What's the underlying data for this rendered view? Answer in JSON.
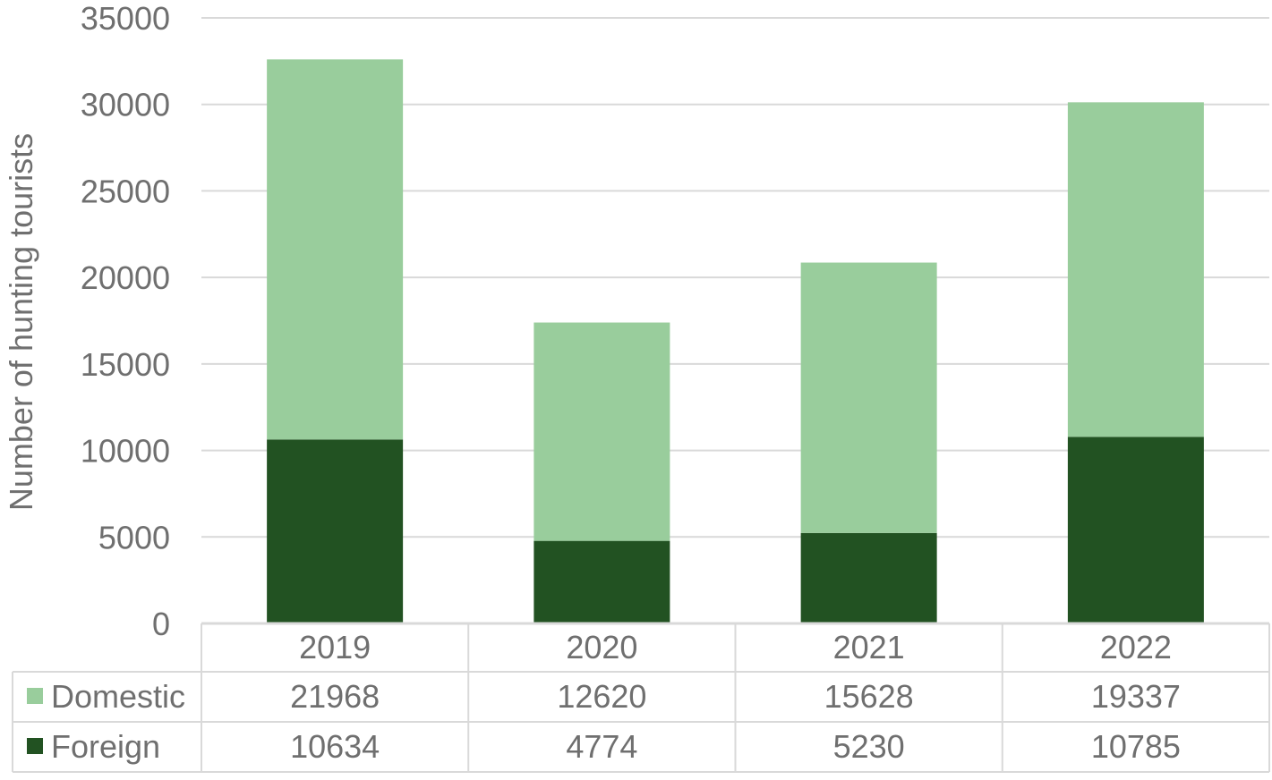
{
  "chart_data": {
    "type": "bar",
    "stacked": true,
    "title": "",
    "xlabel": "",
    "ylabel": "Number of hunting tourists",
    "categories": [
      "2019",
      "2020",
      "2021",
      "2022"
    ],
    "ylim": [
      0,
      35000
    ],
    "yticks": [
      0,
      5000,
      10000,
      15000,
      20000,
      25000,
      30000,
      35000
    ],
    "grid": true,
    "legend": "data-table",
    "series": [
      {
        "name": "Foreign",
        "values": [
          10634,
          4774,
          5230,
          10785
        ],
        "color": "#225222"
      },
      {
        "name": "Domestic",
        "values": [
          21968,
          12620,
          15628,
          19337
        ],
        "color": "#99cd9c"
      }
    ],
    "data_table": {
      "rows": [
        {
          "name": "Domestic",
          "values": [
            "21968",
            "12620",
            "15628",
            "19337"
          ]
        },
        {
          "name": "Foreign",
          "values": [
            "10634",
            "4774",
            "5230",
            "10785"
          ]
        }
      ]
    },
    "colors": {
      "grid": "#d9d9d9",
      "text": "#6f6f6f"
    }
  }
}
